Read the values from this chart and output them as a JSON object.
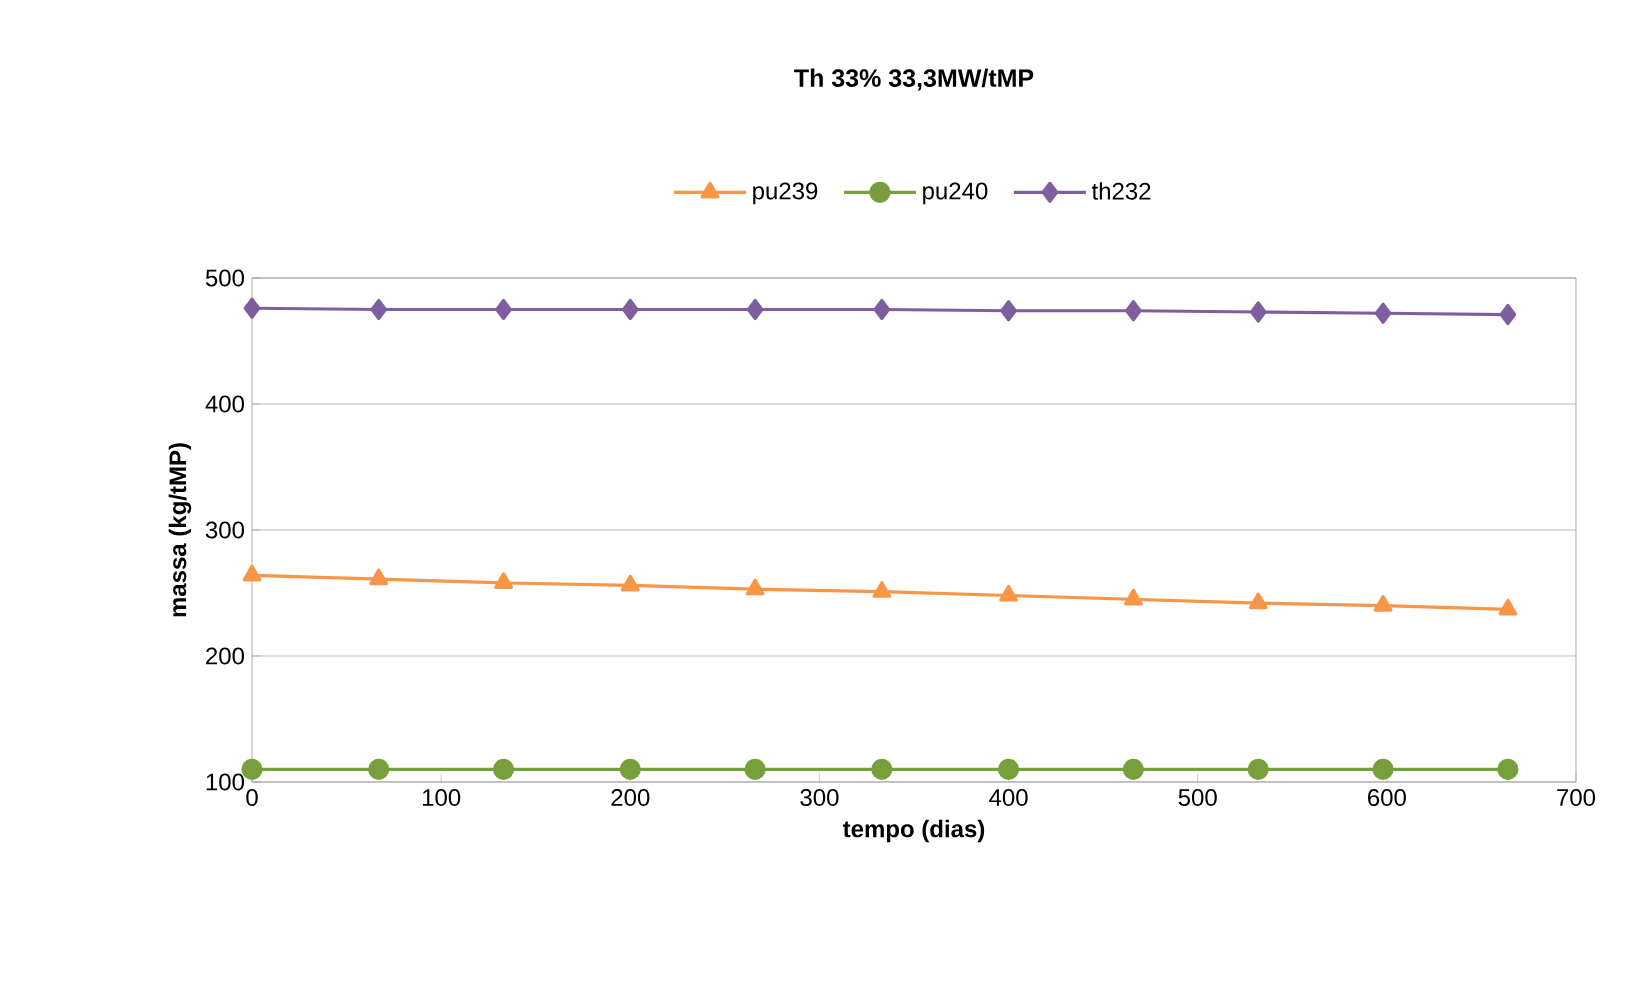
{
  "chart_data": {
    "type": "line",
    "title": "Th 33%    33,3MW/tMP",
    "xlabel": "tempo (dias)",
    "ylabel": "massa  (kg/tMP)",
    "x": [
      0,
      67,
      133,
      200,
      266,
      333,
      400,
      466,
      532,
      598,
      664
    ],
    "series": [
      {
        "name": "pu239",
        "color": "#f79646",
        "marker": "triangle",
        "values": [
          264,
          261,
          258,
          256,
          253,
          251,
          248,
          245,
          242,
          240,
          237
        ]
      },
      {
        "name": "pu240",
        "color": "#77a03c",
        "marker": "circle",
        "values": [
          110,
          110,
          110,
          110,
          110,
          110,
          110,
          110,
          110,
          110,
          110
        ]
      },
      {
        "name": "th232",
        "color": "#7d5f9f",
        "marker": "diamond",
        "values": [
          476,
          475,
          475,
          475,
          475,
          475,
          474,
          474,
          473,
          472,
          471
        ]
      }
    ],
    "xlim": [
      0,
      700
    ],
    "xticks": [
      0,
      100,
      200,
      300,
      400,
      500,
      600,
      700
    ],
    "ylim": [
      100,
      500
    ],
    "yticks": [
      100,
      200,
      300,
      400,
      500
    ],
    "grid": "y",
    "legend": "top",
    "line_style": "solid"
  }
}
